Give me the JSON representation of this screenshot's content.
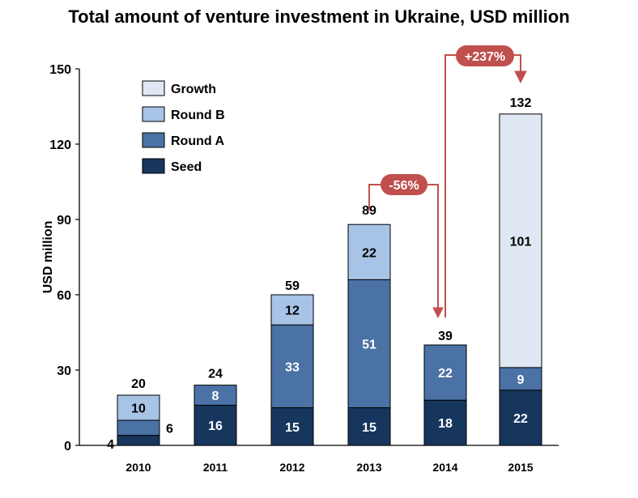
{
  "chart_data": {
    "type": "bar",
    "stacked": true,
    "title": "Total amount of venture investment in Ukraine, USD million",
    "xlabel": "",
    "ylabel": "USD million",
    "ylim": [
      0,
      150
    ],
    "yticks": [
      0,
      30,
      60,
      90,
      120,
      150
    ],
    "categories": [
      "2010",
      "2011",
      "2012",
      "2013",
      "2014",
      "2015"
    ],
    "series": [
      {
        "name": "Seed",
        "color": "#17365d",
        "values": [
          4,
          16,
          15,
          15,
          18,
          22
        ]
      },
      {
        "name": "Round A",
        "color": "#4a72a5",
        "values": [
          6,
          8,
          33,
          51,
          22,
          9
        ]
      },
      {
        "name": "Round B",
        "color": "#a7c3e6",
        "values": [
          10,
          0,
          12,
          22,
          0,
          0
        ]
      },
      {
        "name": "Growth",
        "color": "#dfe7f3",
        "values": [
          0,
          0,
          0,
          0,
          0,
          101
        ]
      }
    ],
    "totals": [
      20,
      24,
      59,
      89,
      39,
      132
    ],
    "legend_position": "top-left",
    "annotations": [
      {
        "text": "-56%",
        "from": "2013",
        "to": "2014",
        "color": "#c0504d"
      },
      {
        "text": "+237%",
        "from": "2014",
        "to": "2015",
        "color": "#c0504d"
      }
    ]
  }
}
